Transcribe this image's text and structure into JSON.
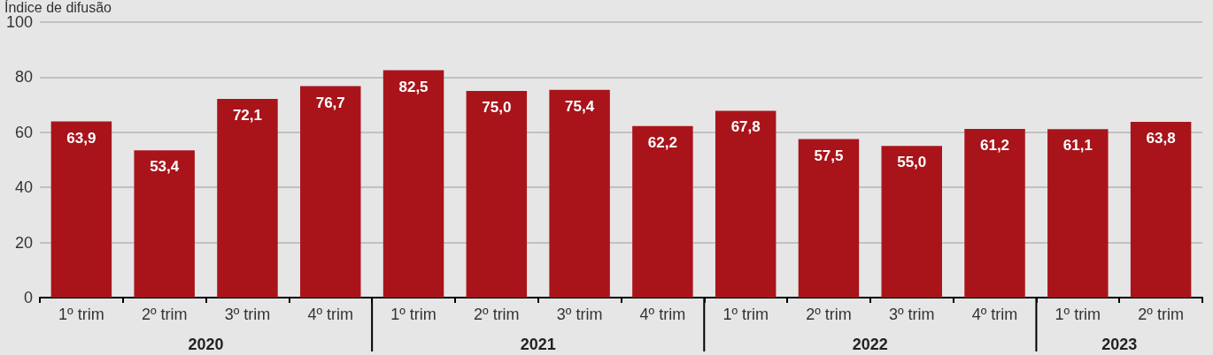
{
  "chart_data": {
    "type": "bar",
    "ylabel": "Índice de difusão",
    "categories": [
      "1º trim",
      "2º trim",
      "3º trim",
      "4º trim",
      "1º trim",
      "2º trim",
      "3º trim",
      "4º trim",
      "1º trim",
      "2º trim",
      "3º trim",
      "4º trim",
      "1º trim",
      "2º trim"
    ],
    "values": [
      63.9,
      53.4,
      72.1,
      76.7,
      82.5,
      75.0,
      75.4,
      62.2,
      67.8,
      57.5,
      55.0,
      61.2,
      61.1,
      63.8
    ],
    "value_labels": [
      "63,9",
      "53,4",
      "72,1",
      "76,7",
      "82,5",
      "75,0",
      "75,4",
      "62,2",
      "67,8",
      "57,5",
      "55,0",
      "61,2",
      "61,1",
      "63,8"
    ],
    "color": "#a8141a",
    "ylim": [
      0,
      100
    ],
    "yticks": [
      0,
      20,
      40,
      60,
      80,
      100
    ],
    "grid": "y",
    "annotations": [
      "2020",
      "2021",
      "2022",
      "2023"
    ]
  }
}
